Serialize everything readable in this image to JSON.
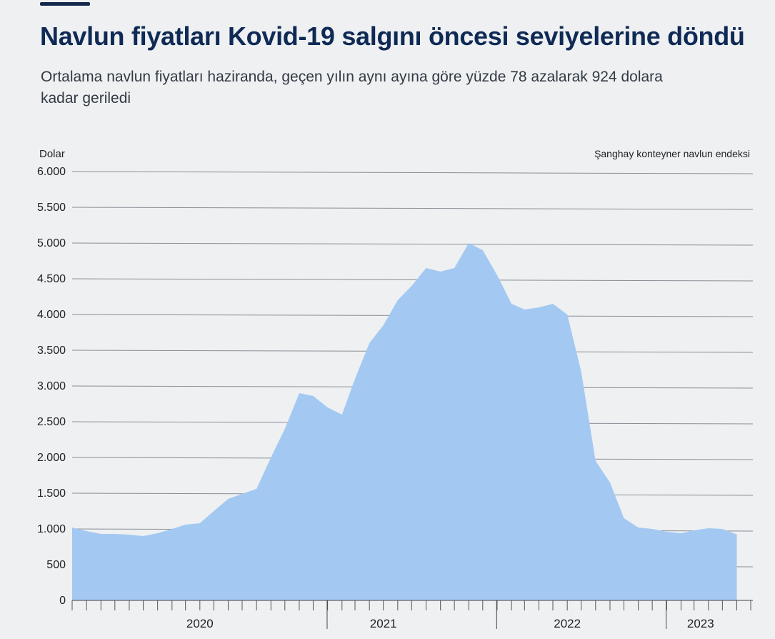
{
  "header": {
    "title": "Navlun fiyatları Kovid-19 salgını öncesi seviyelerine döndü",
    "subtitle": "Ortalama navlun fiyatları haziranda, geçen yılın aynı ayına göre yüzde 78 azalarak 924 dolara kadar geriledi"
  },
  "chart_data": {
    "type": "area",
    "title": "Navlun fiyatları Kovid-19 salgını öncesi seviyelerine döndü",
    "subtitle": "Ortalama navlun fiyatları haziranda, geçen yılın aynı ayına göre yüzde 78 azalarak 924 dolara kadar geriledi",
    "ylabel": "Dolar",
    "series_label": "Şanghay konteyner navlun endeksi",
    "ylim": [
      0,
      6000
    ],
    "yticks": [
      0,
      500,
      1000,
      1500,
      2000,
      2500,
      3000,
      3500,
      4000,
      4500,
      5000,
      5500,
      6000
    ],
    "ytick_labels": [
      "0",
      "500",
      "1.000",
      "1.500",
      "2.000",
      "2.500",
      "3.000",
      "3.500",
      "4.000",
      "4.500",
      "5.000",
      "5.500",
      "6.000"
    ],
    "xlim": [
      "2019-07-01",
      "2023-07-01"
    ],
    "year_labels": [
      {
        "label": "2020",
        "center": "2020-04-01"
      },
      {
        "label": "2021",
        "center": "2021-05-01"
      },
      {
        "label": "2022",
        "center": "2022-06-01"
      },
      {
        "label": "2023",
        "center": "2023-03-15"
      }
    ],
    "year_boundaries": [
      "2020-12-31",
      "2021-12-31",
      "2022-12-31"
    ],
    "x": [
      "2019-07-01",
      "2019-08-01",
      "2019-09-01",
      "2019-10-01",
      "2019-11-01",
      "2019-12-01",
      "2020-01-01",
      "2020-02-01",
      "2020-03-01",
      "2020-04-01",
      "2020-05-01",
      "2020-06-01",
      "2020-07-01",
      "2020-08-01",
      "2020-09-01",
      "2020-10-01",
      "2020-11-01",
      "2020-12-01",
      "2021-01-01",
      "2021-02-01",
      "2021-03-01",
      "2021-04-01",
      "2021-05-01",
      "2021-06-01",
      "2021-07-01",
      "2021-08-01",
      "2021-09-01",
      "2021-10-01",
      "2021-11-01",
      "2021-12-01",
      "2022-01-01",
      "2022-02-01",
      "2022-03-01",
      "2022-04-01",
      "2022-05-01",
      "2022-06-01",
      "2022-07-01",
      "2022-08-01",
      "2022-09-01",
      "2022-10-01",
      "2022-11-01",
      "2022-12-01",
      "2023-01-01",
      "2023-02-01",
      "2023-03-01",
      "2023-04-01",
      "2023-05-01",
      "2023-06-01"
    ],
    "values": [
      1020,
      970,
      930,
      930,
      920,
      900,
      940,
      1000,
      1060,
      1080,
      1250,
      1420,
      1490,
      1560,
      2000,
      2400,
      2900,
      2860,
      2700,
      2600,
      3100,
      3600,
      3850,
      4200,
      4400,
      4650,
      4600,
      4650,
      5000,
      4900,
      4550,
      4150,
      4070,
      4100,
      4150,
      4000,
      3200,
      1950,
      1650,
      1150,
      1020,
      1000,
      960,
      940,
      980,
      1010,
      1000,
      924
    ]
  }
}
